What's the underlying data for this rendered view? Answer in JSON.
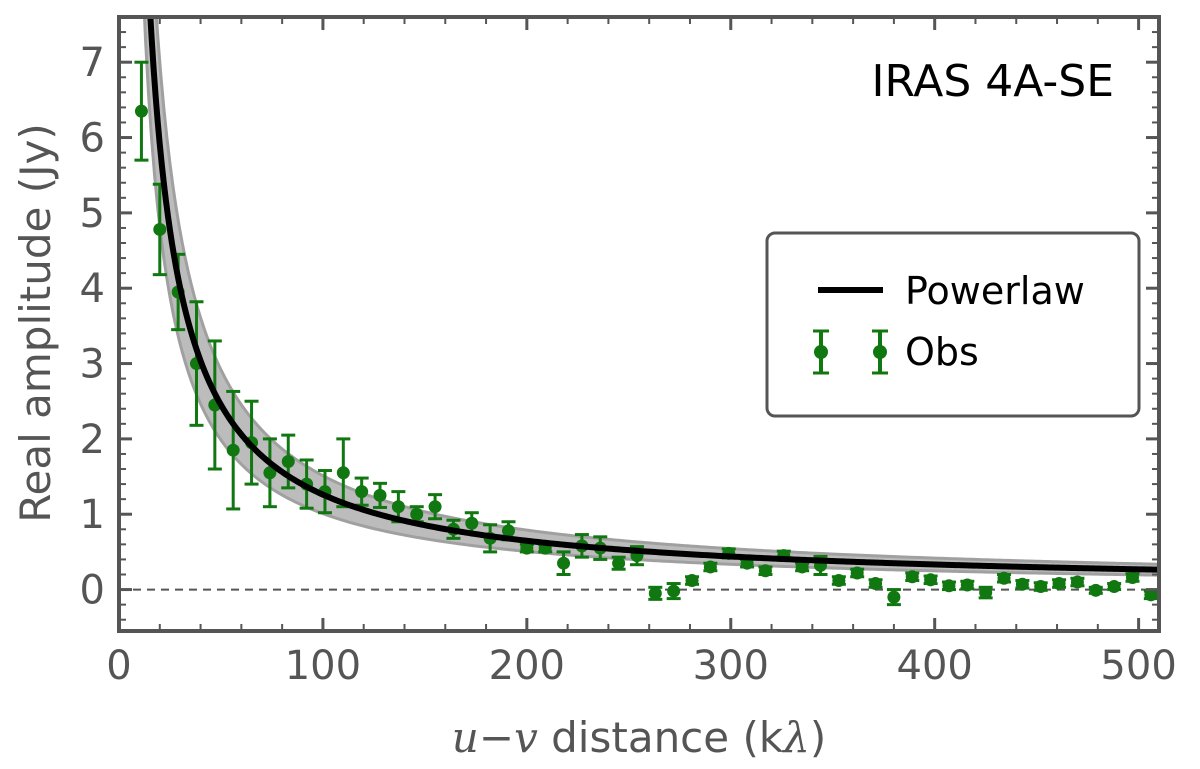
{
  "chart_data": {
    "type": "scatter",
    "annotation": "IRAS 4A-SE",
    "xlabel": "u−v distance (kλ)",
    "xlabel_parts": {
      "u": "u",
      "minus": "−",
      "v": "v",
      "rest": " distance (k",
      "lambda": "λ",
      "close": ")"
    },
    "ylabel": "Real amplitude (Jy)",
    "xlim": [
      0,
      510
    ],
    "ylim": [
      -0.55,
      7.6
    ],
    "xticks": [
      0,
      100,
      200,
      300,
      400,
      500
    ],
    "yticks": [
      0,
      1,
      2,
      3,
      4,
      5,
      6,
      7
    ],
    "grid": false,
    "legend_position": "center-right",
    "colors": {
      "model": "#000000",
      "band": "#b0b0b0",
      "obs": "#117711",
      "zero_line": "#555555",
      "axis": "#555555"
    },
    "series": [
      {
        "name": "Powerlaw",
        "kind": "line",
        "model": {
          "form": "power law",
          "amplitude_at_100": 1.26,
          "exponent": -0.96
        },
        "x_range": [
          11,
          510
        ]
      },
      {
        "name": "Obs",
        "kind": "errorbar",
        "x": [
          11,
          20,
          29,
          38,
          47,
          56,
          65,
          74,
          83,
          92,
          101,
          110,
          119,
          128,
          137,
          146,
          155,
          164,
          173,
          182,
          191,
          200,
          209,
          218,
          227,
          236,
          245,
          254,
          263,
          272,
          281,
          290,
          299,
          308,
          317,
          326,
          335,
          344,
          353,
          362,
          371,
          380,
          389,
          398,
          407,
          416,
          425,
          434,
          443,
          452,
          461,
          470,
          479,
          488,
          497,
          506
        ],
        "y": [
          6.35,
          4.78,
          3.95,
          3.0,
          2.45,
          1.85,
          1.95,
          1.55,
          1.7,
          1.4,
          1.3,
          1.55,
          1.3,
          1.25,
          1.1,
          1.0,
          1.1,
          0.8,
          0.88,
          0.68,
          0.78,
          0.55,
          0.55,
          0.35,
          0.58,
          0.55,
          0.35,
          0.45,
          -0.05,
          -0.02,
          0.12,
          0.3,
          0.48,
          0.35,
          0.25,
          0.45,
          0.3,
          0.32,
          0.12,
          0.22,
          0.08,
          -0.1,
          0.17,
          0.13,
          0.05,
          0.06,
          -0.04,
          0.15,
          0.07,
          0.04,
          0.08,
          0.1,
          -0.01,
          0.04,
          0.16,
          -0.07
        ],
        "err": [
          0.65,
          0.6,
          0.5,
          0.82,
          0.85,
          0.78,
          0.55,
          0.45,
          0.35,
          0.32,
          0.28,
          0.45,
          0.18,
          0.16,
          0.2,
          0.1,
          0.16,
          0.12,
          0.14,
          0.18,
          0.12,
          0.05,
          0.05,
          0.15,
          0.15,
          0.15,
          0.08,
          0.12,
          0.08,
          0.1,
          0.05,
          0.05,
          0.06,
          0.05,
          0.05,
          0.06,
          0.05,
          0.12,
          0.05,
          0.05,
          0.05,
          0.1,
          0.05,
          0.05,
          0.05,
          0.05,
          0.07,
          0.05,
          0.05,
          0.05,
          0.05,
          0.05,
          0.04,
          0.04,
          0.05,
          0.05
        ]
      }
    ],
    "reference_line": {
      "y": 0,
      "style": "dashed"
    }
  }
}
